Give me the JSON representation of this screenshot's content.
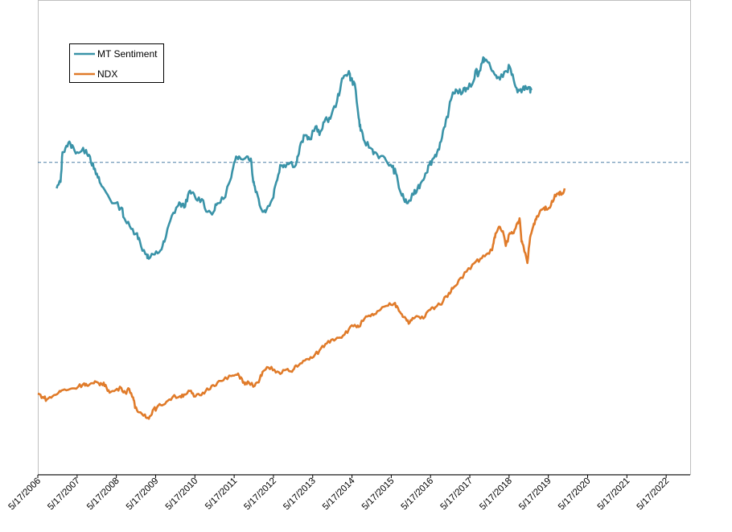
{
  "chart_data": {
    "type": "line",
    "title": "",
    "xlabel": "",
    "ylabel": "",
    "x_tick_labels": [
      "5/17/2006",
      "5/17/2007",
      "5/17/2008",
      "5/17/2009",
      "5/17/2010",
      "5/17/2011",
      "5/17/2012",
      "5/17/2013",
      "5/17/2014",
      "5/17/2015",
      "5/17/2016",
      "5/17/2017",
      "5/17/2018",
      "5/17/2019",
      "5/17/2020",
      "5/17/2021",
      "5/17/2022"
    ],
    "xlim": [
      2006.37,
      2023.0
    ],
    "ylim": [
      0,
      100
    ],
    "grid": false,
    "legend_position": "top-left",
    "reference_line": {
      "y": 67.6,
      "style": "dashed",
      "color": "#4a7fa5"
    },
    "series": [
      {
        "name": "MT Sentiment",
        "color": "#3a93a8",
        "points": [
          [
            2006.85,
            61.5
          ],
          [
            2006.95,
            63
          ],
          [
            2007.0,
            70
          ],
          [
            2007.1,
            71.5
          ],
          [
            2007.2,
            72
          ],
          [
            2007.3,
            70.5
          ],
          [
            2007.45,
            70
          ],
          [
            2007.6,
            70.5
          ],
          [
            2007.7,
            69
          ],
          [
            2007.8,
            66
          ],
          [
            2007.9,
            64
          ],
          [
            2008.0,
            62
          ],
          [
            2008.15,
            60
          ],
          [
            2008.3,
            58
          ],
          [
            2008.5,
            57
          ],
          [
            2008.6,
            54
          ],
          [
            2008.75,
            52
          ],
          [
            2008.9,
            51
          ],
          [
            2009.0,
            48
          ],
          [
            2009.15,
            46
          ],
          [
            2009.2,
            45
          ],
          [
            2009.35,
            46
          ],
          [
            2009.5,
            47
          ],
          [
            2009.6,
            49
          ],
          [
            2009.75,
            54
          ],
          [
            2009.9,
            57
          ],
          [
            2010.0,
            58
          ],
          [
            2010.1,
            57
          ],
          [
            2010.2,
            60
          ],
          [
            2010.3,
            60.5
          ],
          [
            2010.4,
            59
          ],
          [
            2010.55,
            59
          ],
          [
            2010.7,
            56
          ],
          [
            2010.85,
            56
          ],
          [
            2010.95,
            58
          ],
          [
            2011.1,
            59
          ],
          [
            2011.3,
            64
          ],
          [
            2011.4,
            68
          ],
          [
            2011.5,
            69
          ],
          [
            2011.7,
            69
          ],
          [
            2011.8,
            68.5
          ],
          [
            2011.85,
            64
          ],
          [
            2011.9,
            62
          ],
          [
            2012.0,
            59
          ],
          [
            2012.1,
            56
          ],
          [
            2012.2,
            56.5
          ],
          [
            2012.35,
            59
          ],
          [
            2012.45,
            63
          ],
          [
            2012.55,
            67
          ],
          [
            2012.65,
            67
          ],
          [
            2012.8,
            67.5
          ],
          [
            2012.95,
            67
          ],
          [
            2013.0,
            69
          ],
          [
            2013.1,
            72.5
          ],
          [
            2013.2,
            74
          ],
          [
            2013.3,
            73
          ],
          [
            2013.45,
            76
          ],
          [
            2013.55,
            74
          ],
          [
            2013.65,
            77
          ],
          [
            2013.75,
            77.5
          ],
          [
            2013.85,
            78.5
          ],
          [
            2014.0,
            82
          ],
          [
            2014.1,
            86
          ],
          [
            2014.2,
            88
          ],
          [
            2014.3,
            89
          ],
          [
            2014.35,
            87
          ],
          [
            2014.45,
            86
          ],
          [
            2014.55,
            78
          ],
          [
            2014.6,
            75
          ],
          [
            2014.7,
            72.5
          ],
          [
            2014.85,
            71
          ],
          [
            2014.95,
            70
          ],
          [
            2015.1,
            69
          ],
          [
            2015.25,
            68
          ],
          [
            2015.4,
            66.5
          ],
          [
            2015.5,
            65
          ],
          [
            2015.6,
            61
          ],
          [
            2015.7,
            59
          ],
          [
            2015.8,
            58
          ],
          [
            2015.95,
            60
          ],
          [
            2016.05,
            61.5
          ],
          [
            2016.15,
            63
          ],
          [
            2016.25,
            65
          ],
          [
            2016.35,
            67
          ],
          [
            2016.45,
            68.5
          ],
          [
            2016.55,
            70
          ],
          [
            2016.65,
            72.5
          ],
          [
            2016.75,
            76
          ],
          [
            2016.85,
            80
          ],
          [
            2016.95,
            84
          ],
          [
            2017.05,
            84.5
          ],
          [
            2017.2,
            84
          ],
          [
            2017.3,
            85
          ],
          [
            2017.45,
            86
          ],
          [
            2017.55,
            89.5
          ],
          [
            2017.6,
            88
          ],
          [
            2017.7,
            91
          ],
          [
            2017.75,
            92
          ],
          [
            2017.85,
            91
          ],
          [
            2017.95,
            89
          ],
          [
            2018.05,
            88
          ],
          [
            2018.15,
            87
          ],
          [
            2018.3,
            89
          ],
          [
            2018.4,
            90
          ],
          [
            2018.5,
            87
          ],
          [
            2018.6,
            84
          ],
          [
            2018.7,
            84
          ],
          [
            2018.8,
            85.5
          ],
          [
            2018.9,
            85
          ],
          [
            2018.95,
            84.5
          ]
        ]
      },
      {
        "name": "NDX",
        "color": "#e07b2a",
        "points": [
          [
            2006.37,
            13.4
          ],
          [
            2006.5,
            12.6
          ],
          [
            2006.6,
            12
          ],
          [
            2006.75,
            12.8
          ],
          [
            2006.9,
            13.6
          ],
          [
            2007.0,
            14.2
          ],
          [
            2007.2,
            14.5
          ],
          [
            2007.4,
            15
          ],
          [
            2007.55,
            15.8
          ],
          [
            2007.65,
            15.2
          ],
          [
            2007.8,
            15.8
          ],
          [
            2007.9,
            16
          ],
          [
            2008.0,
            15.6
          ],
          [
            2008.1,
            15.4
          ],
          [
            2008.2,
            13.6
          ],
          [
            2008.35,
            14.2
          ],
          [
            2008.5,
            14.7
          ],
          [
            2008.6,
            13.6
          ],
          [
            2008.7,
            14.5
          ],
          [
            2008.8,
            12.5
          ],
          [
            2008.85,
            10
          ],
          [
            2008.95,
            9
          ],
          [
            2009.1,
            8.5
          ],
          [
            2009.2,
            7.5
          ],
          [
            2009.3,
            9.5
          ],
          [
            2009.4,
            10
          ],
          [
            2009.5,
            10.7
          ],
          [
            2009.65,
            11.5
          ],
          [
            2009.8,
            12.5
          ],
          [
            2010.0,
            12.8
          ],
          [
            2010.1,
            13.2
          ],
          [
            2010.25,
            14
          ],
          [
            2010.35,
            12.7
          ],
          [
            2010.5,
            13
          ],
          [
            2010.65,
            14
          ],
          [
            2010.8,
            15.2
          ],
          [
            2010.95,
            16
          ],
          [
            2011.1,
            16.5
          ],
          [
            2011.3,
            17.5
          ],
          [
            2011.45,
            17.8
          ],
          [
            2011.55,
            17.2
          ],
          [
            2011.65,
            15.5
          ],
          [
            2011.75,
            16
          ],
          [
            2011.9,
            15.2
          ],
          [
            2012.0,
            16
          ],
          [
            2012.1,
            18.5
          ],
          [
            2012.25,
            19.5
          ],
          [
            2012.4,
            19
          ],
          [
            2012.55,
            18
          ],
          [
            2012.7,
            19
          ],
          [
            2012.85,
            18.5
          ],
          [
            2012.95,
            20
          ],
          [
            2013.1,
            20.5
          ],
          [
            2013.25,
            21.5
          ],
          [
            2013.4,
            22
          ],
          [
            2013.55,
            23.5
          ],
          [
            2013.7,
            25
          ],
          [
            2013.85,
            26
          ],
          [
            2014.0,
            26.5
          ],
          [
            2014.15,
            27
          ],
          [
            2014.3,
            28.5
          ],
          [
            2014.45,
            29.5
          ],
          [
            2014.55,
            29
          ],
          [
            2014.7,
            31
          ],
          [
            2014.85,
            31.5
          ],
          [
            2014.95,
            32
          ],
          [
            2015.1,
            33
          ],
          [
            2015.3,
            34
          ],
          [
            2015.45,
            34.5
          ],
          [
            2015.55,
            33.5
          ],
          [
            2015.65,
            32
          ],
          [
            2015.75,
            31
          ],
          [
            2015.85,
            30
          ],
          [
            2015.95,
            31
          ],
          [
            2016.05,
            31.5
          ],
          [
            2016.2,
            31
          ],
          [
            2016.35,
            33
          ],
          [
            2016.45,
            33.5
          ],
          [
            2016.55,
            34
          ],
          [
            2016.7,
            35
          ],
          [
            2016.85,
            37
          ],
          [
            2016.95,
            38
          ],
          [
            2017.1,
            40
          ],
          [
            2017.3,
            42
          ],
          [
            2017.5,
            44
          ],
          [
            2017.65,
            45
          ],
          [
            2017.8,
            46
          ],
          [
            2017.95,
            47
          ],
          [
            2018.0,
            49.5
          ],
          [
            2018.05,
            51
          ],
          [
            2018.15,
            52.5
          ],
          [
            2018.25,
            50.5
          ],
          [
            2018.3,
            48
          ],
          [
            2018.4,
            51
          ],
          [
            2018.5,
            51
          ],
          [
            2018.6,
            53.5
          ],
          [
            2018.65,
            54.5
          ],
          [
            2018.7,
            49
          ],
          [
            2018.75,
            48
          ],
          [
            2018.85,
            44
          ],
          [
            2018.92,
            50
          ],
          [
            2018.98,
            52
          ],
          [
            2019.05,
            54
          ],
          [
            2019.1,
            55
          ],
          [
            2019.2,
            56.5
          ],
          [
            2019.28,
            57
          ],
          [
            2019.35,
            56.5
          ],
          [
            2019.45,
            57.5
          ],
          [
            2019.55,
            60
          ],
          [
            2019.65,
            60.5
          ],
          [
            2019.72,
            60
          ],
          [
            2019.8,
            61.5
          ]
        ]
      }
    ]
  }
}
